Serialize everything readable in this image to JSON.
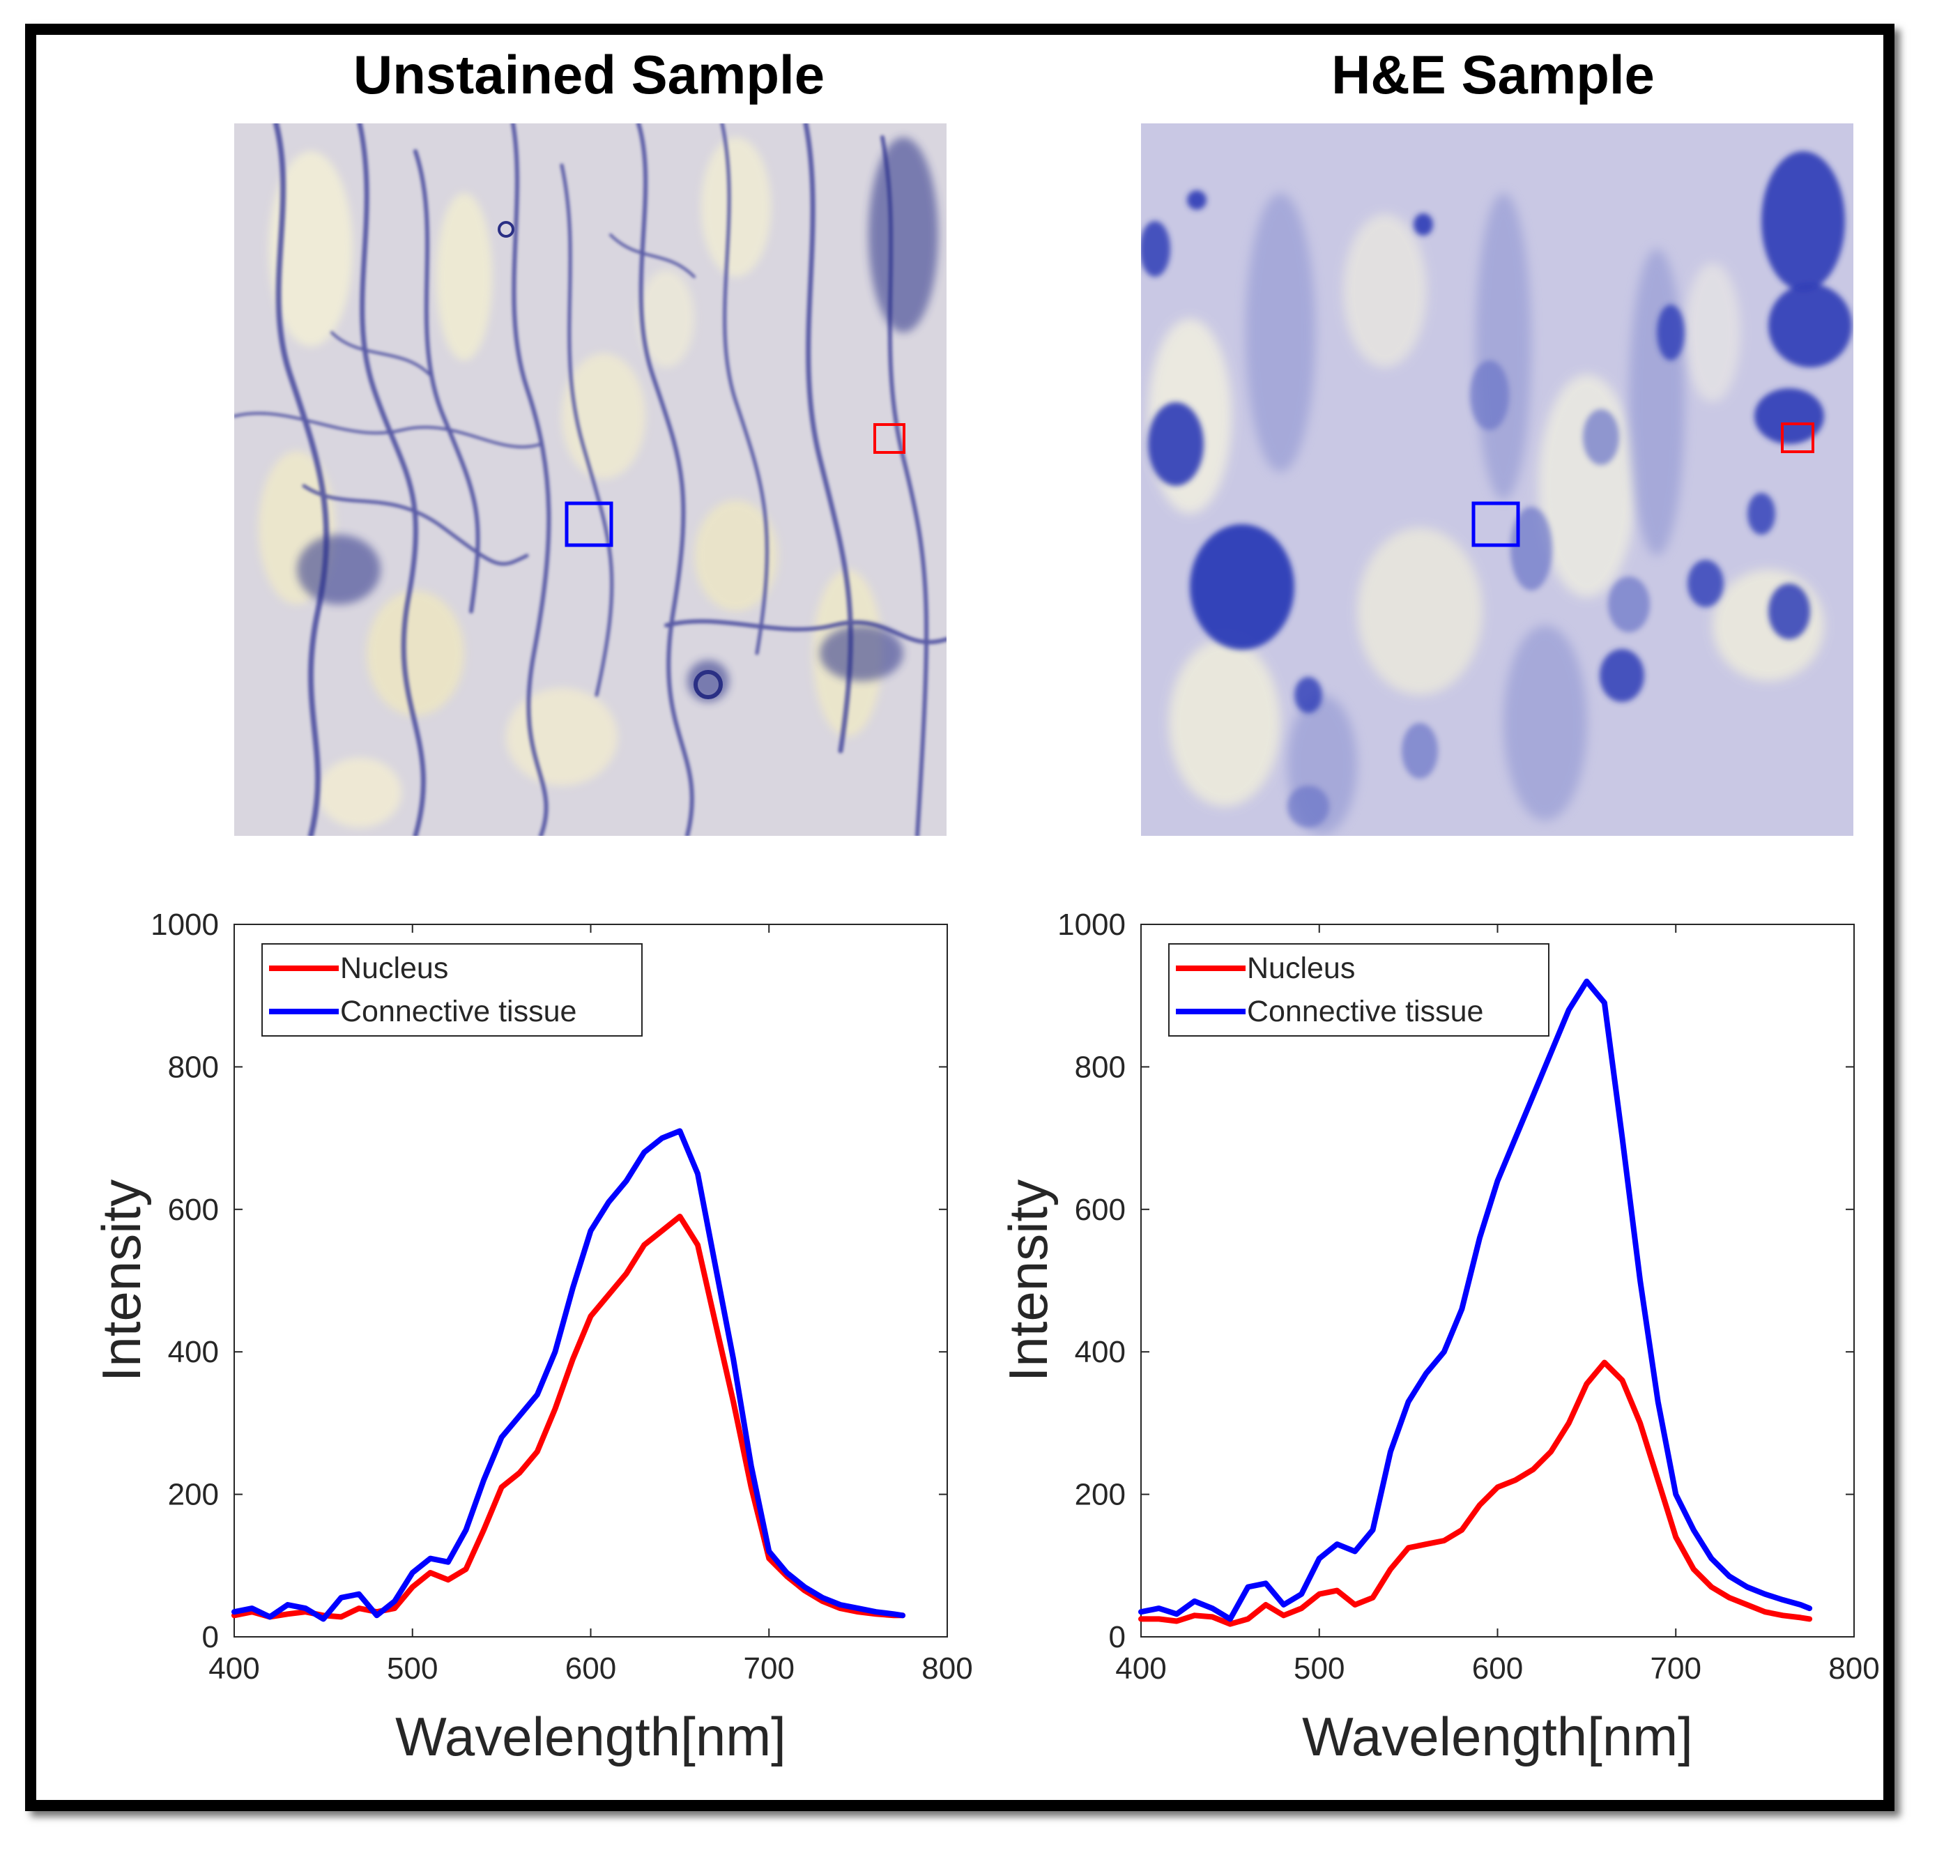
{
  "panels": [
    {
      "title": "Unstained Sample",
      "regions": [
        "red-box",
        "blue-box"
      ]
    },
    {
      "title": "H&E Sample",
      "regions": [
        "red-box",
        "blue-box"
      ]
    }
  ],
  "colors": {
    "nucleus": "#ff0000",
    "connective": "#0000ff",
    "frame": "#000000"
  },
  "chart_data": [
    {
      "type": "line",
      "title": "Unstained Sample",
      "xlabel": "Wavelength[nm]",
      "ylabel": "Intensity",
      "xlim": [
        400,
        800
      ],
      "ylim": [
        0,
        1000
      ],
      "xticks": [
        400,
        500,
        600,
        700,
        800
      ],
      "yticks": [
        0,
        200,
        400,
        600,
        800,
        1000
      ],
      "legend_position": "top-left",
      "series": [
        {
          "name": "Nucleus",
          "color": "#ff0000",
          "x": [
            400,
            410,
            420,
            430,
            440,
            450,
            460,
            470,
            480,
            490,
            500,
            510,
            520,
            530,
            540,
            550,
            560,
            570,
            580,
            590,
            600,
            610,
            620,
            630,
            640,
            650,
            660,
            670,
            680,
            690,
            700,
            710,
            720,
            730,
            740,
            750,
            760,
            770,
            775
          ],
          "y": [
            30,
            35,
            28,
            32,
            35,
            30,
            28,
            40,
            35,
            40,
            70,
            90,
            80,
            95,
            150,
            210,
            230,
            260,
            320,
            390,
            450,
            480,
            510,
            550,
            570,
            590,
            550,
            440,
            330,
            210,
            110,
            85,
            65,
            50,
            40,
            35,
            32,
            30,
            30
          ]
        },
        {
          "name": "Connective tissue",
          "color": "#0000ff",
          "x": [
            400,
            410,
            420,
            430,
            440,
            450,
            460,
            470,
            480,
            490,
            500,
            510,
            520,
            530,
            540,
            550,
            560,
            570,
            580,
            590,
            600,
            610,
            620,
            630,
            640,
            650,
            660,
            670,
            680,
            690,
            700,
            710,
            720,
            730,
            740,
            750,
            760,
            770,
            775
          ],
          "y": [
            35,
            40,
            28,
            45,
            40,
            25,
            55,
            60,
            30,
            50,
            90,
            110,
            105,
            150,
            220,
            280,
            310,
            340,
            400,
            490,
            570,
            610,
            640,
            680,
            700,
            710,
            650,
            520,
            390,
            240,
            120,
            90,
            70,
            55,
            45,
            40,
            35,
            32,
            30
          ]
        }
      ]
    },
    {
      "type": "line",
      "title": "H&E Sample",
      "xlabel": "Wavelength[nm]",
      "ylabel": "Intensity",
      "xlim": [
        400,
        800
      ],
      "ylim": [
        0,
        1000
      ],
      "xticks": [
        400,
        500,
        600,
        700,
        800
      ],
      "yticks": [
        0,
        200,
        400,
        600,
        800,
        1000
      ],
      "legend_position": "top-left",
      "series": [
        {
          "name": "Nucleus",
          "color": "#ff0000",
          "x": [
            400,
            410,
            420,
            430,
            440,
            450,
            460,
            470,
            480,
            490,
            500,
            510,
            520,
            530,
            540,
            550,
            560,
            570,
            580,
            590,
            600,
            610,
            620,
            630,
            640,
            650,
            660,
            670,
            680,
            690,
            700,
            710,
            720,
            730,
            740,
            750,
            760,
            770,
            775
          ],
          "y": [
            25,
            25,
            22,
            30,
            28,
            18,
            25,
            45,
            30,
            40,
            60,
            65,
            45,
            55,
            95,
            125,
            130,
            135,
            150,
            185,
            210,
            220,
            235,
            260,
            300,
            355,
            385,
            360,
            300,
            220,
            140,
            95,
            70,
            55,
            45,
            35,
            30,
            27,
            25
          ]
        },
        {
          "name": "Connective tissue",
          "color": "#0000ff",
          "x": [
            400,
            410,
            420,
            430,
            440,
            450,
            460,
            470,
            480,
            490,
            500,
            510,
            520,
            530,
            540,
            550,
            560,
            570,
            580,
            590,
            600,
            610,
            620,
            630,
            640,
            650,
            660,
            670,
            680,
            690,
            700,
            710,
            720,
            730,
            740,
            750,
            760,
            770,
            775
          ],
          "y": [
            35,
            40,
            32,
            50,
            40,
            25,
            70,
            75,
            45,
            60,
            110,
            130,
            120,
            150,
            260,
            330,
            370,
            400,
            460,
            560,
            640,
            700,
            760,
            820,
            880,
            920,
            890,
            700,
            500,
            330,
            200,
            150,
            110,
            85,
            70,
            60,
            52,
            45,
            40
          ]
        }
      ]
    }
  ]
}
